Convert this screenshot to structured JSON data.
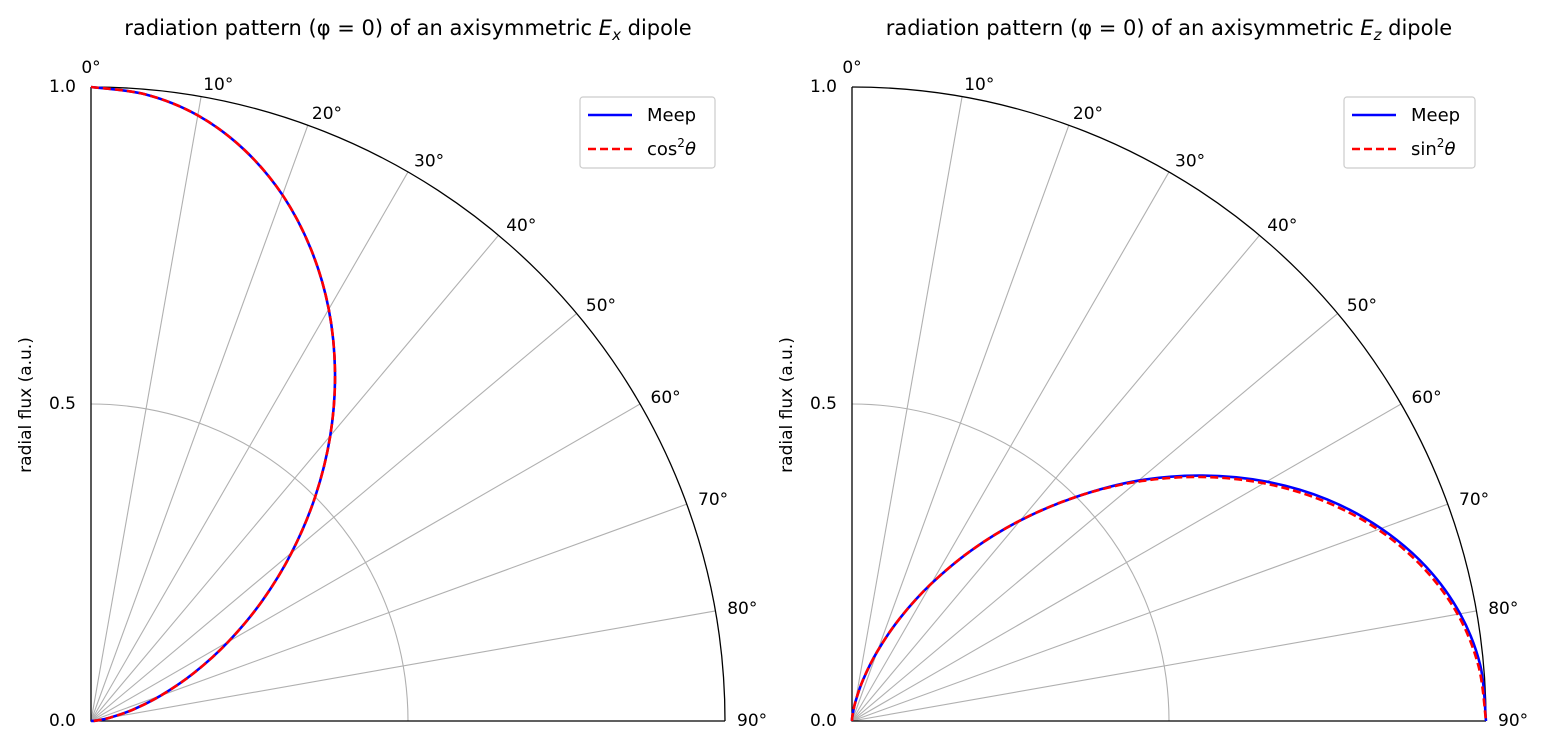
{
  "colors": {
    "meep": "#0000ff",
    "analytic": "#ff0000",
    "grid": "#b0b0b0",
    "frame": "#000000"
  },
  "chart_data": [
    {
      "type": "line",
      "projection": "polar",
      "title_prefix": "radiation pattern (φ = 0) of an axisymmetric ",
      "title_field": "E",
      "title_sub": "x",
      "title_suffix": " dipole",
      "ylabel": "radial flux (a.u.)",
      "theta_tick_labels": [
        "0°",
        "10°",
        "20°",
        "30°",
        "40°",
        "50°",
        "60°",
        "70°",
        "80°",
        "90°"
      ],
      "r_tick_labels": [
        "0.0",
        "0.5",
        "1.0"
      ],
      "r_ticks": [
        0,
        0.5,
        1.0
      ],
      "rlim": [
        0,
        1.0
      ],
      "theta_range_deg": [
        0,
        90
      ],
      "grid": true,
      "legend_position": "top-right",
      "series": [
        {
          "name": "Meep",
          "style": "solid",
          "color": "#0000ff",
          "theta_deg": [
            0,
            5,
            10,
            15,
            20,
            25,
            30,
            35,
            40,
            45,
            50,
            55,
            60,
            65,
            70,
            75,
            80,
            85,
            90
          ],
          "r": [
            1.0,
            0.992,
            0.97,
            0.933,
            0.883,
            0.821,
            0.75,
            0.671,
            0.587,
            0.5,
            0.413,
            0.329,
            0.25,
            0.179,
            0.117,
            0.067,
            0.03,
            0.008,
            0.0
          ]
        },
        {
          "name_base": "cos",
          "name_sup": "2",
          "name_var": "θ",
          "style": "dashed",
          "color": "#ff0000",
          "theta_deg": [
            0,
            5,
            10,
            15,
            20,
            25,
            30,
            35,
            40,
            45,
            50,
            55,
            60,
            65,
            70,
            75,
            80,
            85,
            90
          ],
          "r": [
            1.0,
            0.992,
            0.97,
            0.933,
            0.883,
            0.821,
            0.75,
            0.671,
            0.587,
            0.5,
            0.413,
            0.329,
            0.25,
            0.179,
            0.117,
            0.067,
            0.03,
            0.008,
            0.0
          ]
        }
      ]
    },
    {
      "type": "line",
      "projection": "polar",
      "title_prefix": "radiation pattern (φ = 0) of an axisymmetric ",
      "title_field": "E",
      "title_sub": "z",
      "title_suffix": " dipole",
      "ylabel": "radial flux (a.u.)",
      "theta_tick_labels": [
        "0°",
        "10°",
        "20°",
        "30°",
        "40°",
        "50°",
        "60°",
        "70°",
        "80°",
        "90°"
      ],
      "r_tick_labels": [
        "0.0",
        "0.5",
        "1.0"
      ],
      "r_ticks": [
        0,
        0.5,
        1.0
      ],
      "rlim": [
        0,
        1.0
      ],
      "theta_range_deg": [
        0,
        90
      ],
      "grid": true,
      "legend_position": "top-right",
      "series": [
        {
          "name": "Meep",
          "style": "solid",
          "color": "#0000ff",
          "theta_deg": [
            0,
            5,
            10,
            15,
            20,
            25,
            30,
            35,
            40,
            45,
            50,
            55,
            60,
            65,
            70,
            75,
            80,
            85,
            90
          ],
          "r": [
            0.0,
            0.008,
            0.03,
            0.067,
            0.117,
            0.179,
            0.25,
            0.329,
            0.413,
            0.5,
            0.59,
            0.675,
            0.755,
            0.827,
            0.888,
            0.938,
            0.974,
            0.995,
            1.0
          ]
        },
        {
          "name_base": "sin",
          "name_sup": "2",
          "name_var": "θ",
          "style": "dashed",
          "color": "#ff0000",
          "theta_deg": [
            0,
            5,
            10,
            15,
            20,
            25,
            30,
            35,
            40,
            45,
            50,
            55,
            60,
            65,
            70,
            75,
            80,
            85,
            90
          ],
          "r": [
            0.0,
            0.008,
            0.03,
            0.067,
            0.117,
            0.179,
            0.25,
            0.329,
            0.413,
            0.5,
            0.587,
            0.671,
            0.75,
            0.821,
            0.883,
            0.933,
            0.97,
            0.992,
            1.0
          ]
        }
      ]
    }
  ]
}
